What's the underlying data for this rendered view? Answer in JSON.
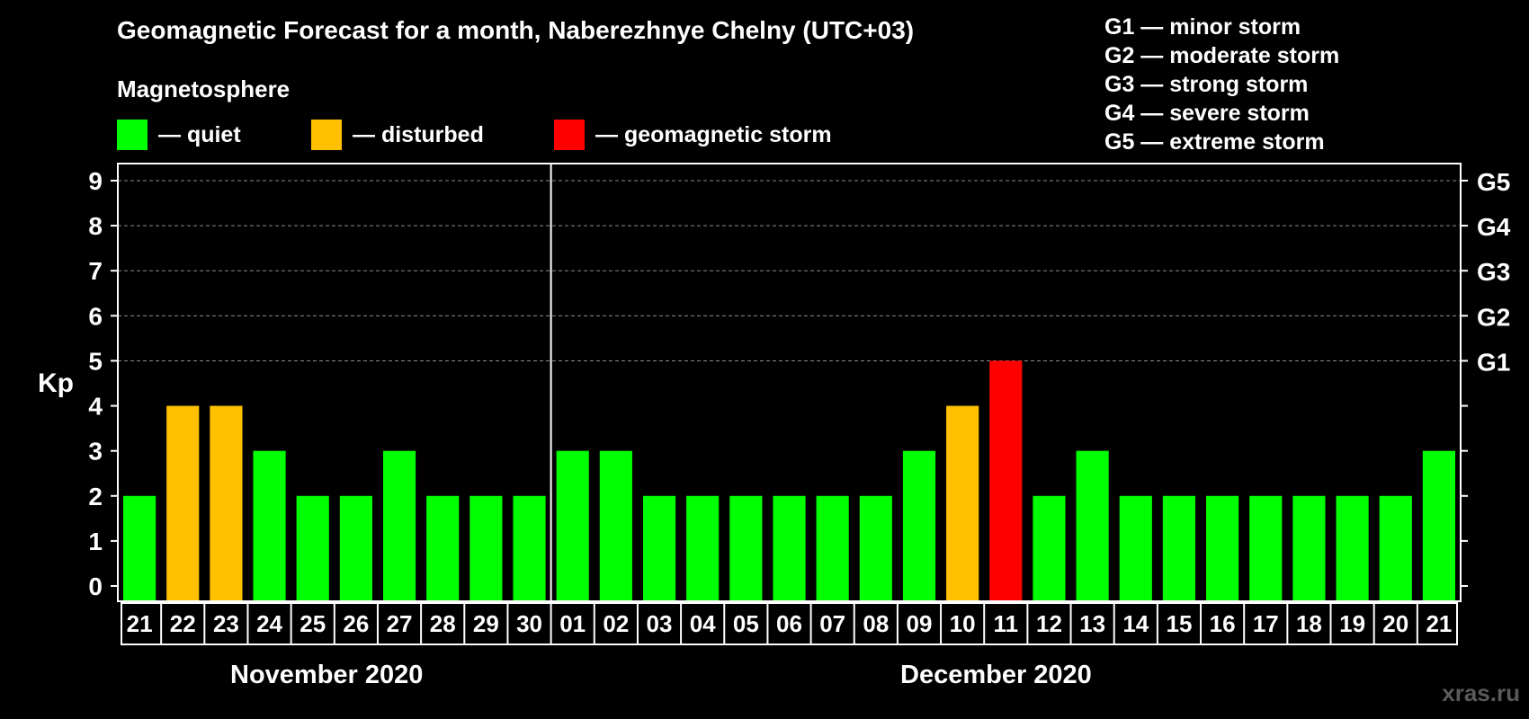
{
  "title": "Geomagnetic Forecast for a month, Naberezhnye Chelny (UTC+03)",
  "magnetosphere": {
    "title": "Magnetosphere",
    "legend": [
      {
        "key": "quiet",
        "label": "— quiet",
        "color": "#00ff00"
      },
      {
        "key": "disturbed",
        "label": "— disturbed",
        "color": "#ffc000"
      },
      {
        "key": "storm",
        "label": "— geomagnetic storm",
        "color": "#ff0000"
      }
    ]
  },
  "g_scale": [
    "G1 — minor storm",
    "G2 — moderate storm",
    "G3 — strong storm",
    "G4 — severe storm",
    "G5 — extreme storm"
  ],
  "months": [
    "November 2020",
    "December 2020"
  ],
  "watermark": "xras.ru",
  "chart_data": {
    "type": "bar",
    "ylabel": "Kp",
    "ylim": [
      0,
      9
    ],
    "yticks": [
      "0",
      "1",
      "2",
      "3",
      "4",
      "5",
      "6",
      "7",
      "8",
      "9"
    ],
    "right_ticks": [
      {
        "kp": 5,
        "label": "G1"
      },
      {
        "kp": 6,
        "label": "G2"
      },
      {
        "kp": 7,
        "label": "G3"
      },
      {
        "kp": 8,
        "label": "G4"
      },
      {
        "kp": 9,
        "label": "G5"
      }
    ],
    "gridlines_at": [
      5,
      6,
      7,
      8,
      9
    ],
    "month_divider_after_index": 9,
    "categories": [
      "21",
      "22",
      "23",
      "24",
      "25",
      "26",
      "27",
      "28",
      "29",
      "30",
      "01",
      "02",
      "03",
      "04",
      "05",
      "06",
      "07",
      "08",
      "09",
      "10",
      "11",
      "12",
      "13",
      "14",
      "15",
      "16",
      "17",
      "18",
      "19",
      "20",
      "21"
    ],
    "values": [
      2,
      4,
      4,
      3,
      2,
      2,
      3,
      2,
      2,
      2,
      3,
      3,
      2,
      2,
      2,
      2,
      2,
      2,
      3,
      4,
      5,
      2,
      3,
      2,
      2,
      2,
      2,
      2,
      2,
      2,
      3
    ],
    "levels": [
      "quiet",
      "disturbed",
      "disturbed",
      "quiet",
      "quiet",
      "quiet",
      "quiet",
      "quiet",
      "quiet",
      "quiet",
      "quiet",
      "quiet",
      "quiet",
      "quiet",
      "quiet",
      "quiet",
      "quiet",
      "quiet",
      "quiet",
      "disturbed",
      "storm",
      "quiet",
      "quiet",
      "quiet",
      "quiet",
      "quiet",
      "quiet",
      "quiet",
      "quiet",
      "quiet",
      "quiet"
    ]
  }
}
